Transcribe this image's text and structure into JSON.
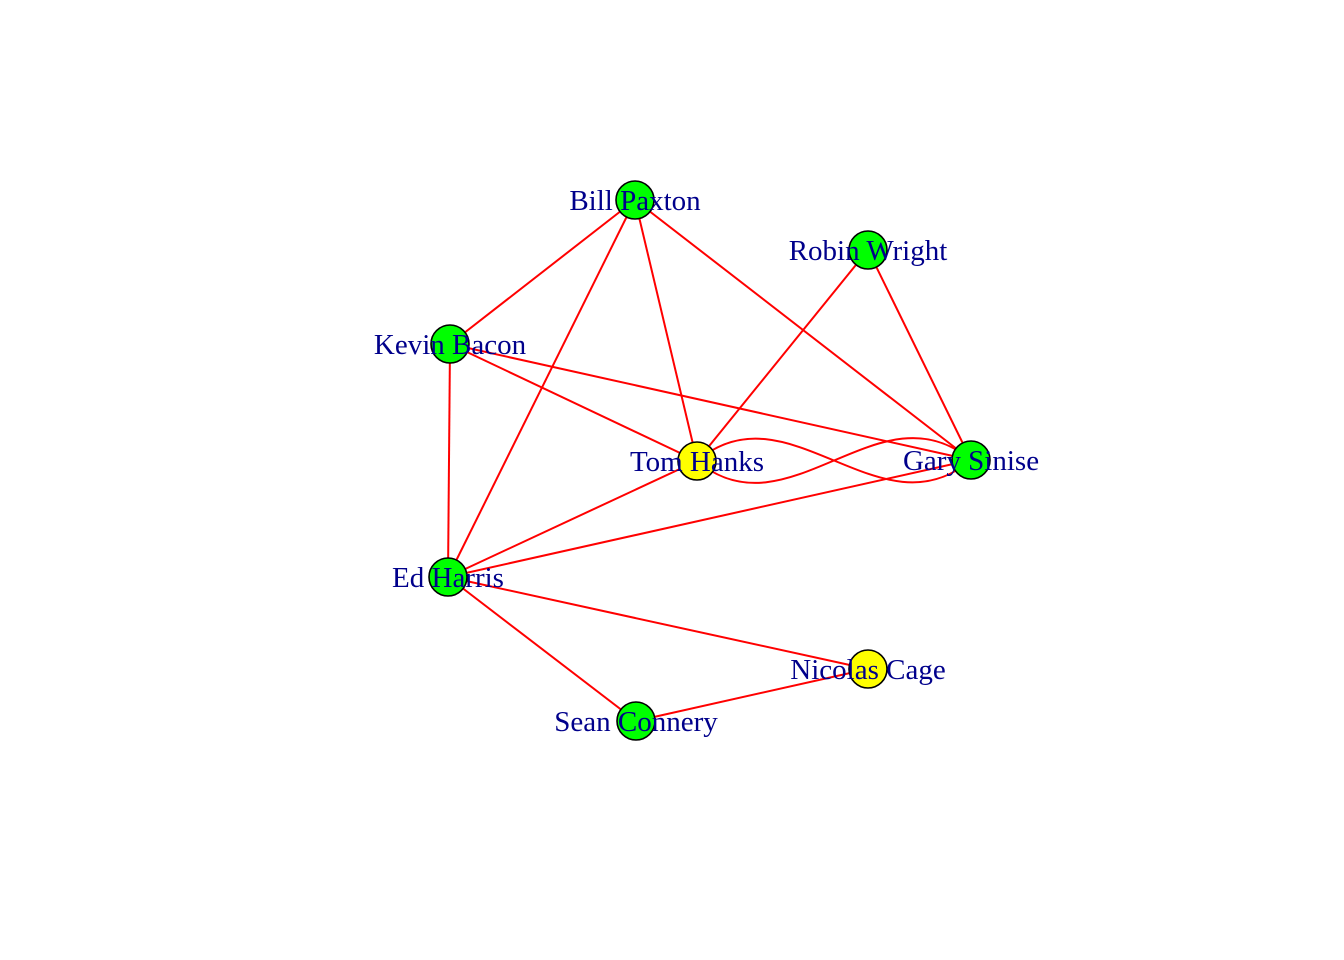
{
  "graph": {
    "colors": {
      "edge": "#ff0000",
      "label": "#00008b",
      "node_border": "#000000",
      "background": "#ffffff"
    },
    "nodes": [
      {
        "id": "bill-paxton",
        "label": "Bill Paxton",
        "fill": "#00ff00"
      },
      {
        "id": "robin-wright",
        "label": "Robin Wright",
        "fill": "#00ff00"
      },
      {
        "id": "kevin-bacon",
        "label": "Kevin Bacon",
        "fill": "#00ff00"
      },
      {
        "id": "tom-hanks",
        "label": "Tom Hanks",
        "fill": "#ffff00"
      },
      {
        "id": "gary-sinise",
        "label": "Gary Sinise",
        "fill": "#00ff00"
      },
      {
        "id": "ed-harris",
        "label": "Ed Harris",
        "fill": "#00ff00"
      },
      {
        "id": "nicolas-cage",
        "label": "Nicolas Cage",
        "fill": "#ffff00"
      },
      {
        "id": "sean-connery",
        "label": "Sean Connery",
        "fill": "#00ff00"
      }
    ],
    "edges": [
      {
        "from": "bill-paxton",
        "to": "kevin-bacon"
      },
      {
        "from": "bill-paxton",
        "to": "ed-harris"
      },
      {
        "from": "bill-paxton",
        "to": "tom-hanks"
      },
      {
        "from": "bill-paxton",
        "to": "gary-sinise"
      },
      {
        "from": "robin-wright",
        "to": "tom-hanks"
      },
      {
        "from": "robin-wright",
        "to": "gary-sinise"
      },
      {
        "from": "kevin-bacon",
        "to": "tom-hanks"
      },
      {
        "from": "kevin-bacon",
        "to": "gary-sinise"
      },
      {
        "from": "kevin-bacon",
        "to": "ed-harris"
      },
      {
        "from": "tom-hanks",
        "to": "gary-sinise"
      },
      {
        "from": "gary-sinise",
        "to": "tom-hanks"
      },
      {
        "from": "tom-hanks",
        "to": "ed-harris"
      },
      {
        "from": "ed-harris",
        "to": "gary-sinise"
      },
      {
        "from": "ed-harris",
        "to": "nicolas-cage"
      },
      {
        "from": "ed-harris",
        "to": "sean-connery"
      },
      {
        "from": "sean-connery",
        "to": "nicolas-cage"
      }
    ]
  }
}
